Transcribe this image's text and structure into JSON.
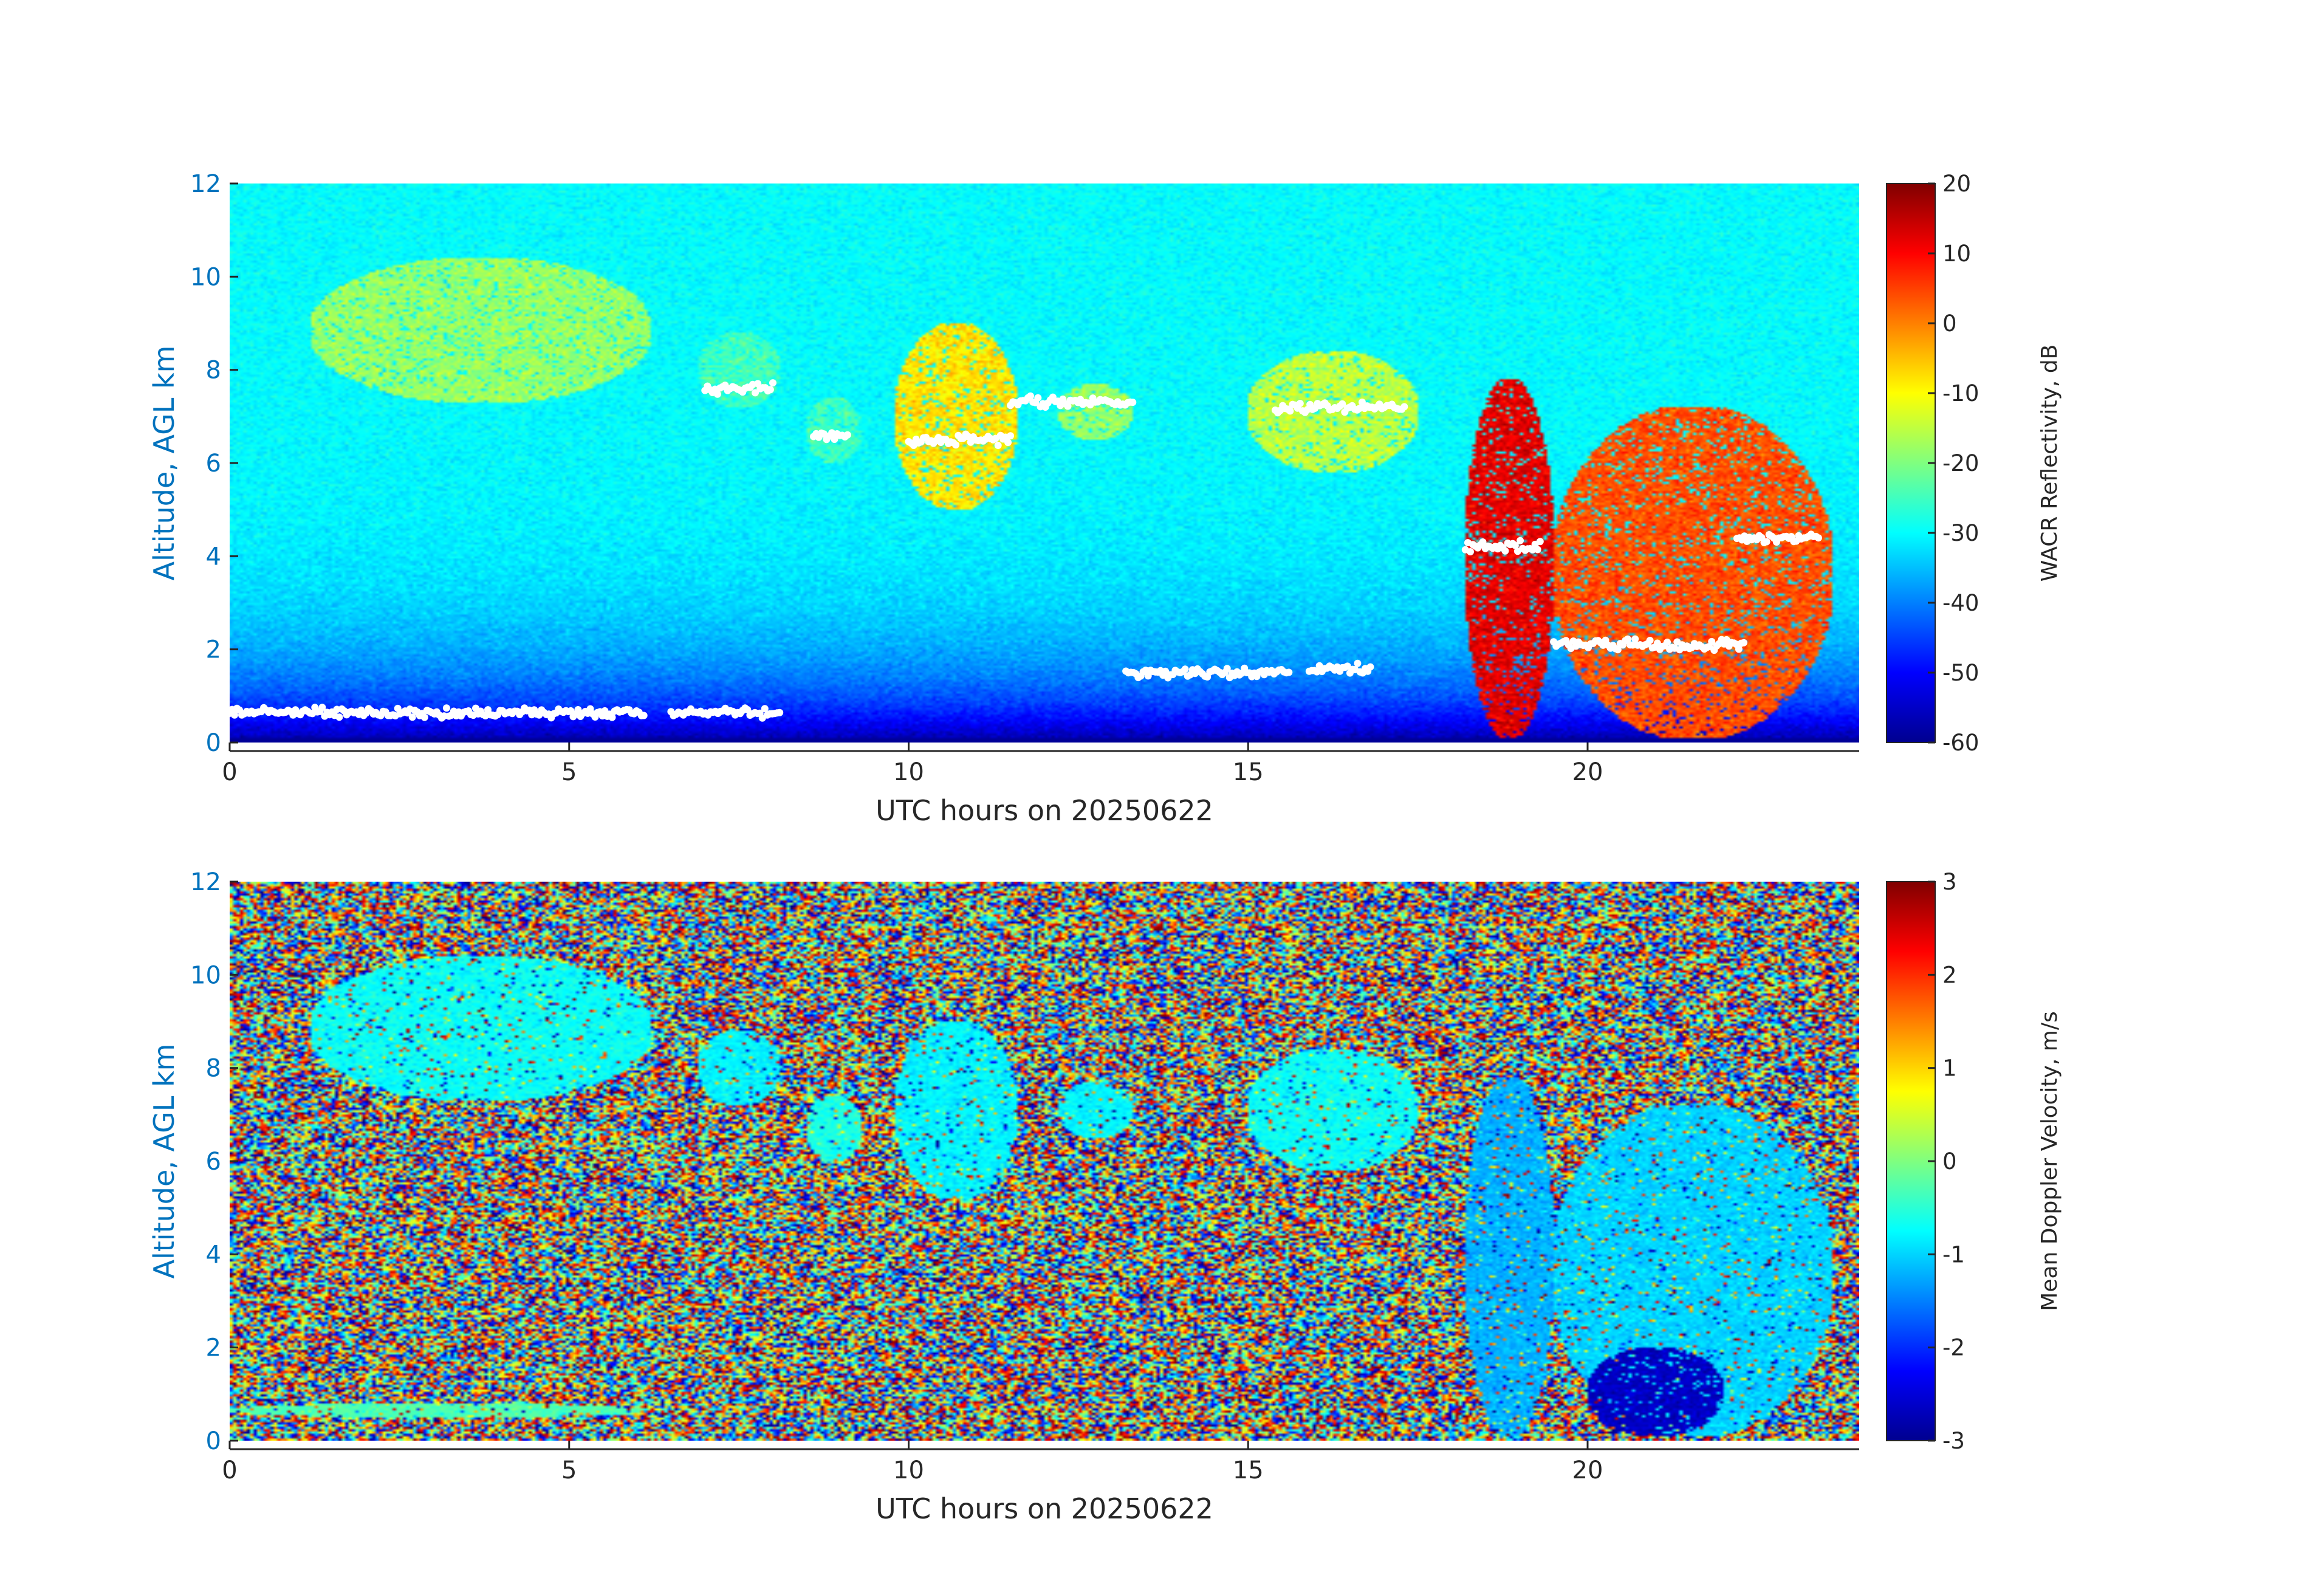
{
  "chart_data": [
    {
      "type": "heatmap",
      "variable": "reflectivity",
      "xlabel": "UTC hours on 20250622",
      "ylabel": "Altitude, AGL km",
      "xlim": [
        0,
        24
      ],
      "ylim": [
        0,
        12
      ],
      "xticks": [
        0,
        5,
        10,
        15,
        20
      ],
      "yticks": [
        0,
        2,
        4,
        6,
        8,
        10,
        12
      ],
      "colorbar": {
        "label": "WACR Reflectivity, dB",
        "range": [
          -60,
          20
        ],
        "ticks": [
          20,
          10,
          0,
          -10,
          -20,
          -30,
          -40,
          -50,
          -60
        ],
        "colormap": "jet"
      },
      "overlay": {
        "color": "#ffffff",
        "marker": "dots"
      },
      "features": [
        {
          "x": [
            1.2,
            6.2
          ],
          "y": [
            7.3,
            10.4
          ],
          "dbz": -18
        },
        {
          "x": [
            6.9,
            8.1
          ],
          "y": [
            7.2,
            8.8
          ],
          "dbz": -25
        },
        {
          "x": [
            8.5,
            9.3
          ],
          "y": [
            6.0,
            7.4
          ],
          "dbz": -25
        },
        {
          "x": [
            9.8,
            11.6
          ],
          "y": [
            5.0,
            9.0
          ],
          "dbz": -8
        },
        {
          "x": [
            12.2,
            13.3
          ],
          "y": [
            6.5,
            7.7
          ],
          "dbz": -18
        },
        {
          "x": [
            15.0,
            17.5
          ],
          "y": [
            5.8,
            8.4
          ],
          "dbz": -15
        },
        {
          "x": [
            18.2,
            19.5
          ],
          "y": [
            0.1,
            7.8
          ],
          "dbz": 12
        },
        {
          "x": [
            19.5,
            23.6
          ],
          "y": [
            0.1,
            7.2
          ],
          "dbz": 4
        }
      ],
      "overlay_segments": [
        {
          "x": [
            0,
            6.1
          ],
          "y": 0.65
        },
        {
          "x": [
            6.5,
            8.1
          ],
          "y": 0.65
        },
        {
          "x": [
            7.0,
            8.0
          ],
          "y": 7.6
        },
        {
          "x": [
            8.6,
            9.1
          ],
          "y": 6.6
        },
        {
          "x": [
            10.0,
            11.5
          ],
          "y": 6.5
        },
        {
          "x": [
            11.5,
            13.3
          ],
          "y": 7.3
        },
        {
          "x": [
            13.2,
            15.6
          ],
          "y": 1.5
        },
        {
          "x": [
            15.9,
            16.8
          ],
          "y": 1.6
        },
        {
          "x": [
            15.4,
            17.3
          ],
          "y": 7.2
        },
        {
          "x": [
            18.2,
            19.3
          ],
          "y": 4.2
        },
        {
          "x": [
            19.5,
            22.3
          ],
          "y": 2.1
        },
        {
          "x": [
            22.2,
            23.4
          ],
          "y": 4.4
        }
      ]
    },
    {
      "type": "heatmap",
      "variable": "velocity",
      "xlabel": "UTC hours on 20250622",
      "ylabel": "Altitude, AGL km",
      "xlim": [
        0,
        24
      ],
      "ylim": [
        0,
        12
      ],
      "xticks": [
        0,
        5,
        10,
        15,
        20
      ],
      "yticks": [
        0,
        2,
        4,
        6,
        8,
        10,
        12
      ],
      "colorbar": {
        "label": "Mean Doppler Velocity, m/s",
        "range": [
          -3,
          3
        ],
        "ticks": [
          3,
          2,
          1,
          0,
          -1,
          -2,
          -3
        ],
        "colormap": "jet"
      },
      "features": [
        {
          "x": [
            1.2,
            6.2
          ],
          "y": [
            7.3,
            10.4
          ],
          "v": -0.7
        },
        {
          "x": [
            6.9,
            8.1
          ],
          "y": [
            7.2,
            8.8
          ],
          "v": -0.8
        },
        {
          "x": [
            8.5,
            9.3
          ],
          "y": [
            6.0,
            7.4
          ],
          "v": -0.6
        },
        {
          "x": [
            9.8,
            11.6
          ],
          "y": [
            5.2,
            9.0
          ],
          "v": -0.8
        },
        {
          "x": [
            12.2,
            13.3
          ],
          "y": [
            6.5,
            7.7
          ],
          "v": -0.8
        },
        {
          "x": [
            15.0,
            17.5
          ],
          "y": [
            5.8,
            8.4
          ],
          "v": -0.7
        },
        {
          "x": [
            18.2,
            19.5
          ],
          "y": [
            0.1,
            7.8
          ],
          "v": -1.2
        },
        {
          "x": [
            19.5,
            23.6
          ],
          "y": [
            0.1,
            7.2
          ],
          "v": -1.0
        },
        {
          "x": [
            20.0,
            22.0
          ],
          "y": [
            0.1,
            2.0
          ],
          "v": -2.6
        },
        {
          "x": [
            0,
            6.1
          ],
          "y": [
            0.5,
            0.8
          ],
          "v": -0.3
        }
      ]
    }
  ]
}
